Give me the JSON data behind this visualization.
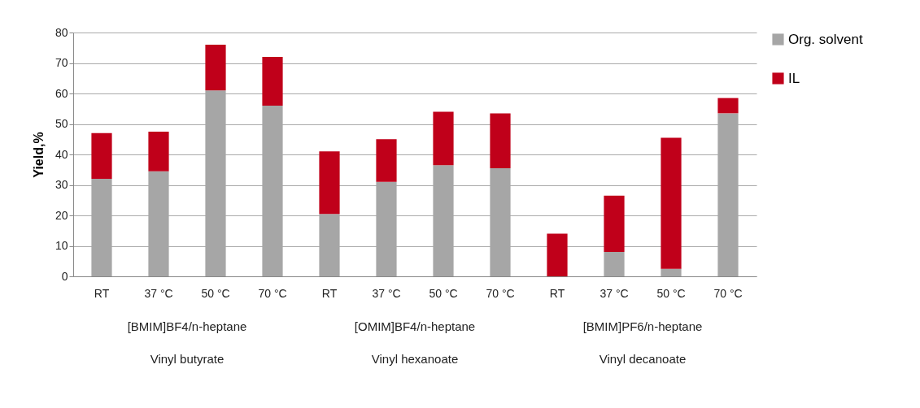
{
  "chart_data": {
    "type": "bar",
    "stacked": true,
    "ylabel": "Yield,%",
    "categories": [
      "RT",
      "37 °C",
      "50 °C",
      "70 °C",
      "RT",
      "37 °C",
      "50 °C",
      "70 °C",
      "RT",
      "37 °C",
      "50 °C",
      "70 °C"
    ],
    "series": [
      {
        "name": "Org. solvent",
        "color": "#a6a6a6",
        "values": [
          32,
          34.5,
          61,
          56,
          20.5,
          31,
          36.5,
          35.5,
          0,
          8,
          2.5,
          53.5
        ]
      },
      {
        "name": "IL",
        "color": "#c0001a",
        "values": [
          15,
          13,
          15,
          16,
          20.5,
          14,
          17.5,
          18,
          14,
          18.5,
          43,
          5
        ]
      }
    ],
    "annotations": [
      "[BMIM]BF4/n-heptane",
      "[OMIM]BF4/n-heptane",
      "[BMIM]PF6/n-heptane",
      "Vinyl butyrate",
      "Vinyl hexanoate",
      "Vinyl decanoate"
    ],
    "ylim": [
      0,
      80
    ],
    "yticks": [
      0,
      10,
      20,
      30,
      40,
      50,
      60,
      70,
      80
    ],
    "grid": "y",
    "legend": "right"
  }
}
